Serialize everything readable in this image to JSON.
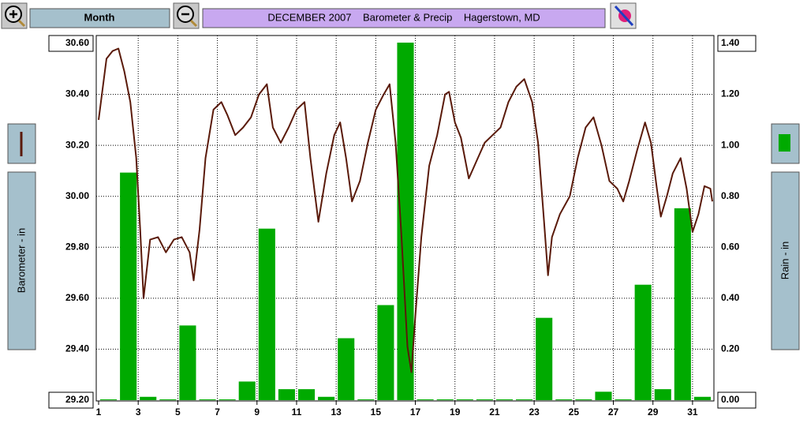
{
  "toolbar": {
    "period": "Month"
  },
  "chart_data": {
    "type": "bar",
    "title": "DECEMBER 2007    Barometer & Precip    Hagerstown, MD",
    "ylabel": "Barometer - in",
    "y2label": "Rain - in",
    "xlim": [
      1,
      32
    ],
    "xticks": [
      1,
      3,
      5,
      7,
      9,
      11,
      13,
      15,
      17,
      19,
      21,
      23,
      25,
      27,
      29,
      31
    ],
    "ylim": [
      29.2,
      30.6
    ],
    "yticks": [
      {
        "value": 29.2,
        "label": "29.20"
      },
      {
        "value": 29.4,
        "label": "29.40"
      },
      {
        "value": 29.6,
        "label": "29.60"
      },
      {
        "value": 29.8,
        "label": "29.80"
      },
      {
        "value": 30.0,
        "label": "30.00"
      },
      {
        "value": 30.2,
        "label": "30.20"
      },
      {
        "value": 30.4,
        "label": "30.40"
      },
      {
        "value": 30.6,
        "label": "30.60"
      }
    ],
    "y2lim": [
      0,
      1.4
    ],
    "y2ticks": [
      {
        "value": 0,
        "label": "0.00"
      },
      {
        "value": 0.2,
        "label": "0.20"
      },
      {
        "value": 0.4,
        "label": "0.40"
      },
      {
        "value": 0.6,
        "label": "0.60"
      },
      {
        "value": 0.8,
        "label": "0.80"
      },
      {
        "value": 1.0,
        "label": "1.00"
      },
      {
        "value": 1.2,
        "label": "1.20"
      },
      {
        "value": 1.4,
        "label": "1.40"
      }
    ],
    "grid": true,
    "series": [
      {
        "type": "line",
        "color": "#5a1a0a",
        "x": [
          1.0,
          1.4,
          1.7,
          2.0,
          2.3,
          2.6,
          2.9,
          3.1,
          3.27,
          3.6,
          4.0,
          4.4,
          4.8,
          5.2,
          5.6,
          5.8,
          6.1,
          6.4,
          6.8,
          7.2,
          7.5,
          7.9,
          8.3,
          8.7,
          9.1,
          9.5,
          9.8,
          10.2,
          10.6,
          11.0,
          11.4,
          11.7,
          12.1,
          12.5,
          12.9,
          13.2,
          13.5,
          13.8,
          14.2,
          14.6,
          15.0,
          15.4,
          15.7,
          16.0,
          16.3,
          16.6,
          16.8,
          17.0,
          17.3,
          17.7,
          18.1,
          18.5,
          18.7,
          19.0,
          19.3,
          19.7,
          20.1,
          20.5,
          20.9,
          21.3,
          21.7,
          22.1,
          22.5,
          22.9,
          23.2,
          23.5,
          23.7,
          23.9,
          24.3,
          24.8,
          25.2,
          25.6,
          26.0,
          26.4,
          26.8,
          27.2,
          27.5,
          27.8,
          28.2,
          28.6,
          28.9,
          29.2,
          29.4,
          29.7,
          30.0,
          30.4,
          30.7,
          31.0,
          31.3,
          31.6,
          31.9,
          32.0
        ],
        "values": [
          30.3,
          30.54,
          30.57,
          30.58,
          30.49,
          30.37,
          30.15,
          29.87,
          29.6,
          29.83,
          29.84,
          29.78,
          29.83,
          29.84,
          29.78,
          29.67,
          29.87,
          30.15,
          30.34,
          30.37,
          30.32,
          30.24,
          30.27,
          30.31,
          30.4,
          30.44,
          30.27,
          30.21,
          30.27,
          30.34,
          30.37,
          30.15,
          29.9,
          30.09,
          30.24,
          30.29,
          30.15,
          29.98,
          30.06,
          30.21,
          30.34,
          30.4,
          30.44,
          30.21,
          29.84,
          29.41,
          29.31,
          29.53,
          29.84,
          30.12,
          30.24,
          30.4,
          30.41,
          30.29,
          30.23,
          30.07,
          30.14,
          30.21,
          30.24,
          30.27,
          30.37,
          30.43,
          30.46,
          30.37,
          30.21,
          29.9,
          29.69,
          29.84,
          29.93,
          30.0,
          30.15,
          30.27,
          30.31,
          30.2,
          30.06,
          30.03,
          29.98,
          30.06,
          30.18,
          30.29,
          30.21,
          30.03,
          29.92,
          30.0,
          30.09,
          30.15,
          30.03,
          29.86,
          29.93,
          30.04,
          30.03,
          29.98
        ]
      },
      {
        "type": "bar",
        "axis": "y2",
        "color": "#00aa00",
        "x": [
          1,
          2,
          3,
          4,
          5,
          6,
          7,
          8,
          9,
          10,
          11,
          12,
          13,
          14,
          15,
          16,
          17,
          18,
          19,
          20,
          21,
          22,
          23,
          24,
          25,
          26,
          27,
          28,
          29,
          30,
          31
        ],
        "values": [
          0,
          0.89,
          0.01,
          0,
          0.29,
          0,
          0,
          0.07,
          0.67,
          0.04,
          0.04,
          0.01,
          0.24,
          0,
          0.37,
          1.4,
          0,
          0,
          0,
          0,
          0,
          0,
          0.32,
          0,
          0,
          0.03,
          0,
          0.45,
          0.04,
          0.75,
          0.01
        ]
      }
    ]
  }
}
